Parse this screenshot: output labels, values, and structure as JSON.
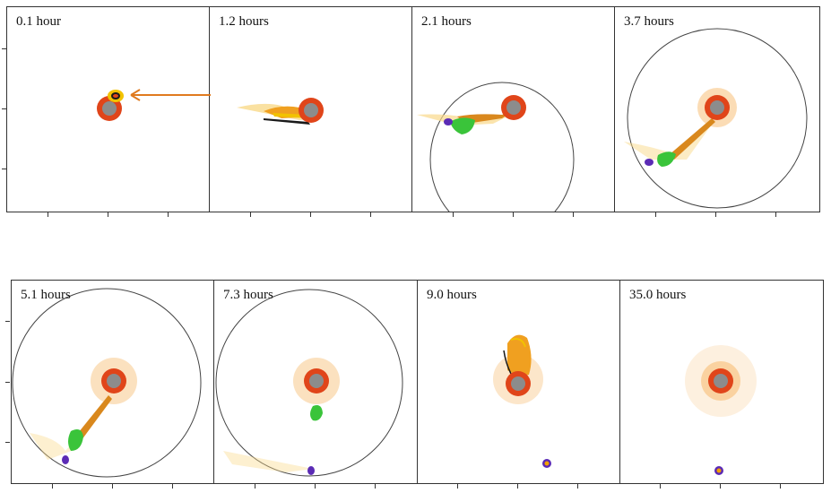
{
  "panels": [
    {
      "label": "0.1 hour"
    },
    {
      "label": "1.2 hours"
    },
    {
      "label": "2.1 hours"
    },
    {
      "label": "3.7 hours"
    },
    {
      "label": "5.1 hours"
    },
    {
      "label": "7.3 hours"
    },
    {
      "label": "9.0 hours"
    },
    {
      "label": "35.0 hours"
    }
  ],
  "colors": {
    "core": "#8c8c8c",
    "mantle": "#e0451a",
    "halo": "#f39a2b",
    "debris_yellow": "#f2c200",
    "clump_green": "#3ac43a",
    "moon_purple": "#5b2bb5",
    "orbit": "#444444",
    "arrow": "#e07a1f"
  }
}
